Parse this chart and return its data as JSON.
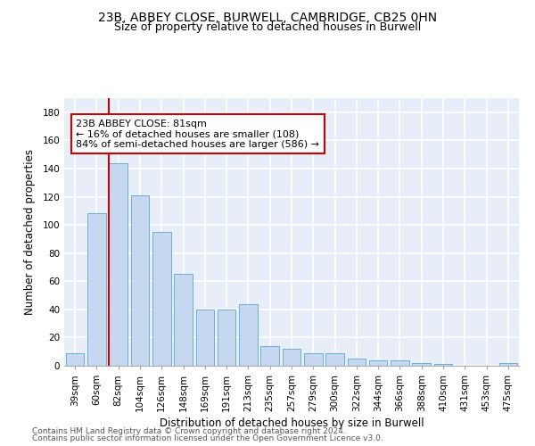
{
  "title1": "23B, ABBEY CLOSE, BURWELL, CAMBRIDGE, CB25 0HN",
  "title2": "Size of property relative to detached houses in Burwell",
  "xlabel": "Distribution of detached houses by size in Burwell",
  "ylabel": "Number of detached properties",
  "categories": [
    "39sqm",
    "60sqm",
    "82sqm",
    "104sqm",
    "126sqm",
    "148sqm",
    "169sqm",
    "191sqm",
    "213sqm",
    "235sqm",
    "257sqm",
    "279sqm",
    "300sqm",
    "322sqm",
    "344sqm",
    "366sqm",
    "388sqm",
    "410sqm",
    "431sqm",
    "453sqm",
    "475sqm"
  ],
  "values": [
    9,
    108,
    144,
    121,
    95,
    65,
    40,
    40,
    44,
    14,
    12,
    9,
    9,
    5,
    4,
    4,
    2,
    1,
    0,
    0,
    2
  ],
  "bar_color": "#c5d8ef",
  "bar_edge_color": "#6baed6",
  "vline_x_index": 2,
  "annotation_text": "23B ABBEY CLOSE: 81sqm\n← 16% of detached houses are smaller (108)\n84% of semi-detached houses are larger (586) →",
  "annotation_box_facecolor": "white",
  "annotation_box_edgecolor": "#cc0000",
  "vline_color": "#cc0000",
  "ylim": [
    0,
    190
  ],
  "yticks": [
    0,
    20,
    40,
    60,
    80,
    100,
    120,
    140,
    160,
    180
  ],
  "plot_bg_color": "#e8eef8",
  "grid_color": "#ffffff",
  "footer1": "Contains HM Land Registry data © Crown copyright and database right 2024.",
  "footer2": "Contains public sector information licensed under the Open Government Licence v3.0.",
  "title_fontsize": 10,
  "subtitle_fontsize": 9,
  "axis_label_fontsize": 8.5,
  "tick_fontsize": 7.5,
  "annotation_fontsize": 8,
  "footer_fontsize": 6.5
}
